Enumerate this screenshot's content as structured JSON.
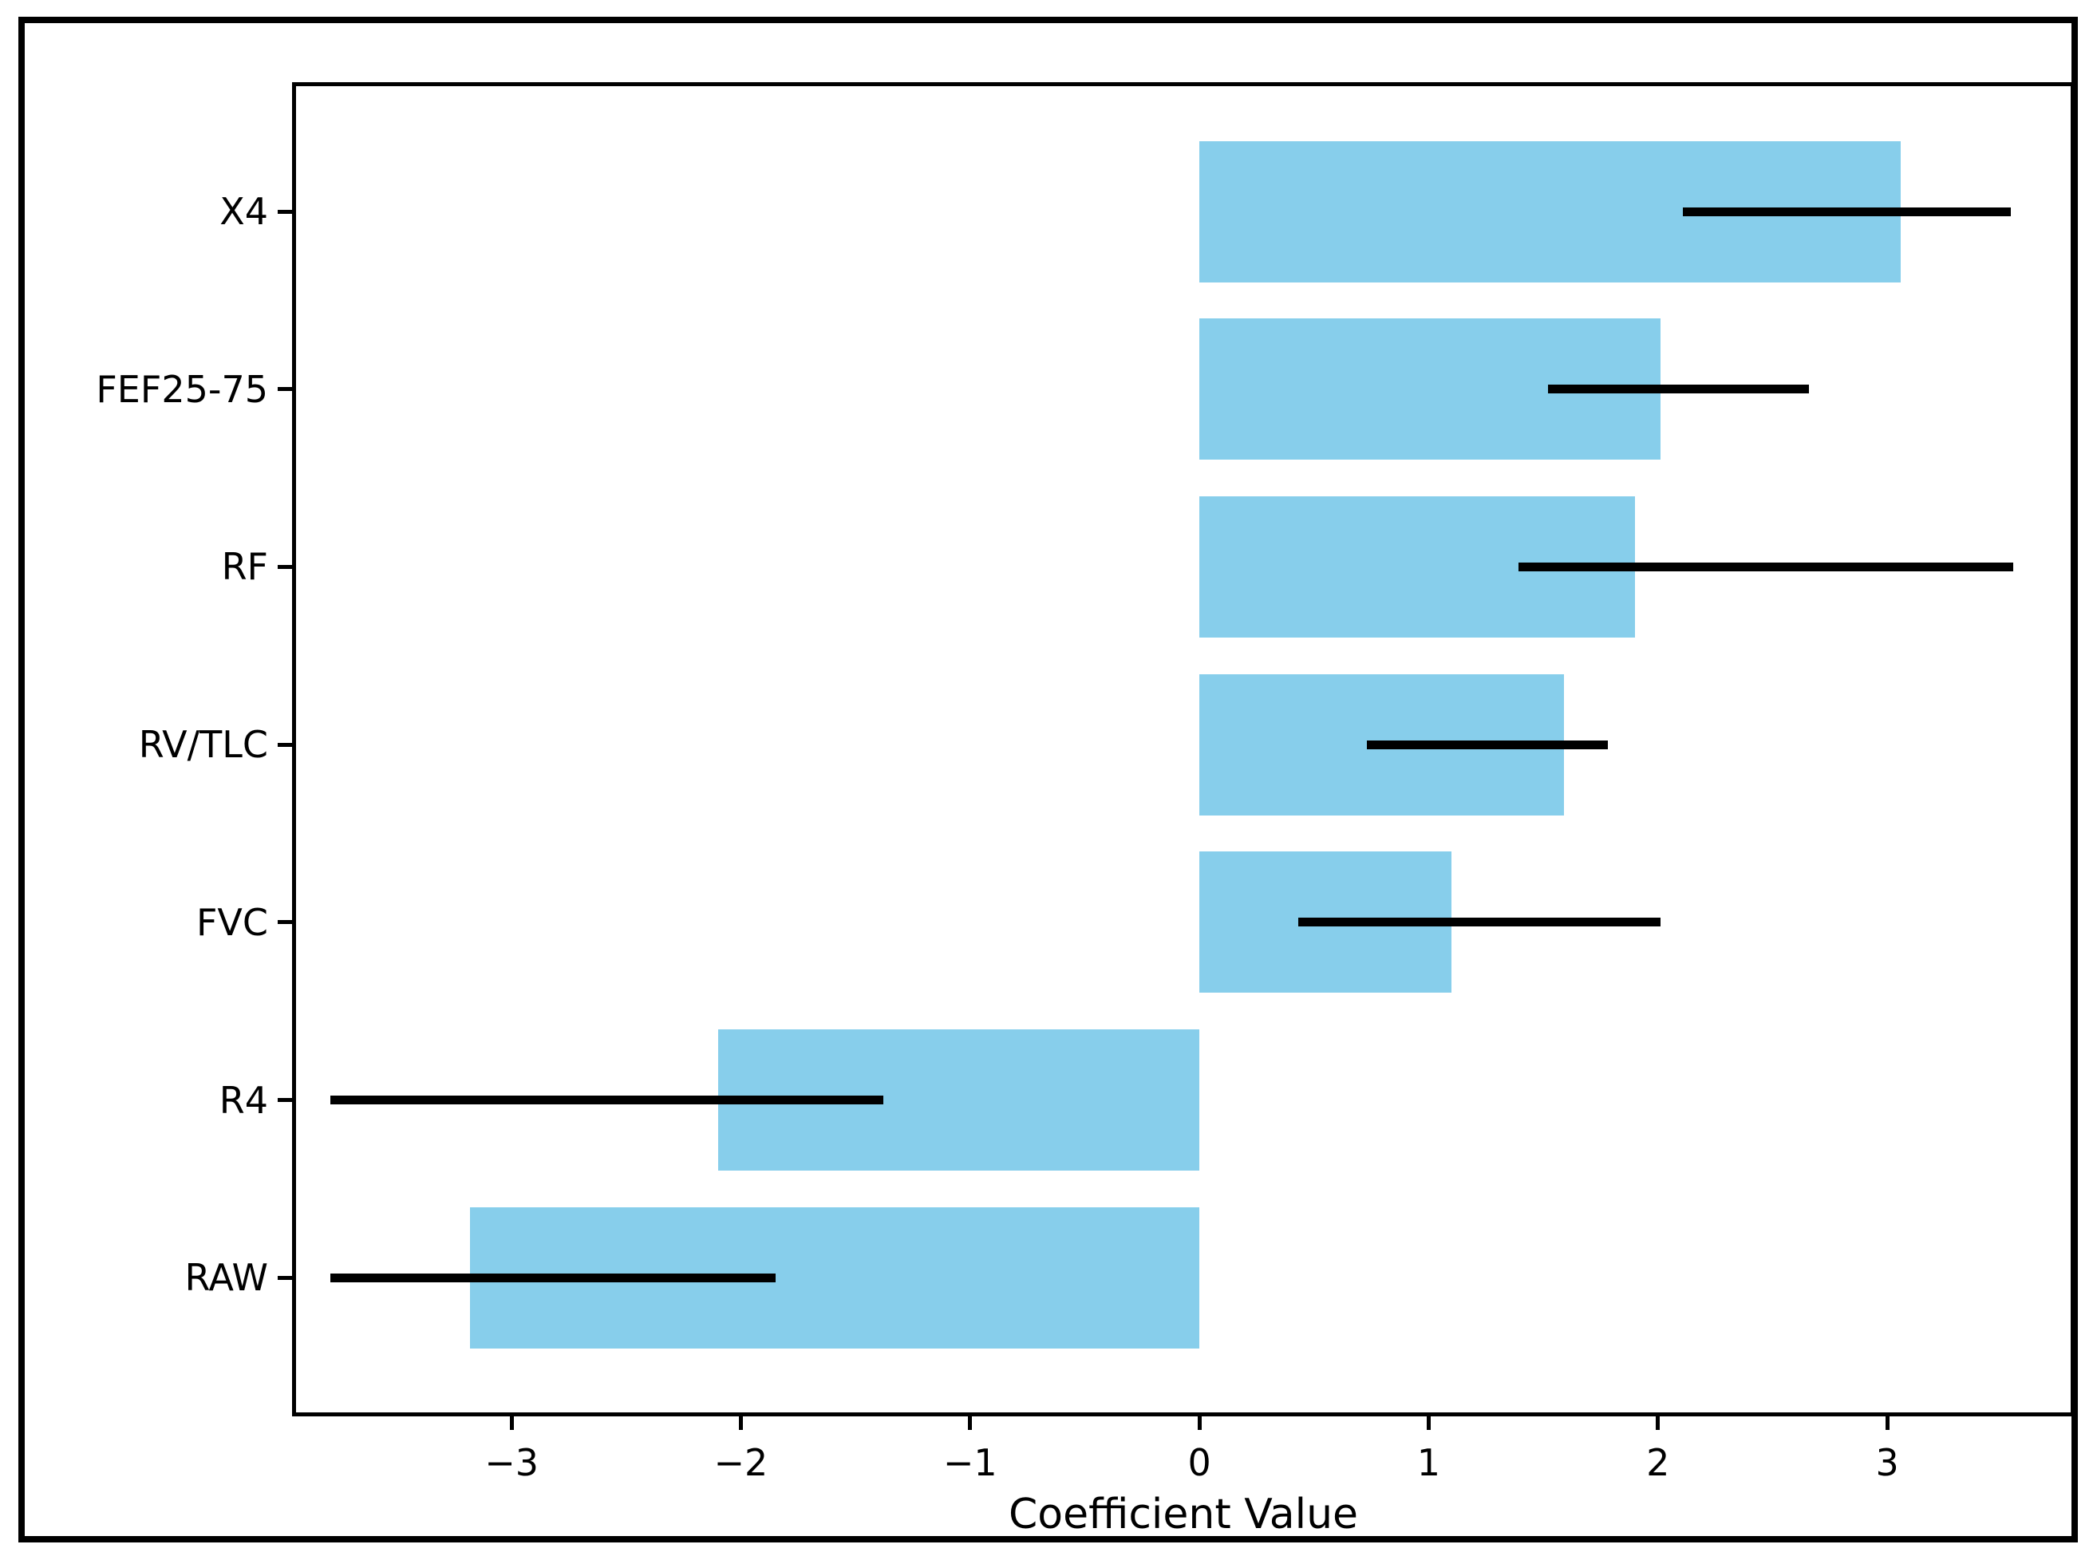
{
  "figure": {
    "background": "#ffffff",
    "border_color": "#000000",
    "bar_color": "#87CEEB",
    "error_bar_color": "#000000"
  },
  "chart_data": {
    "type": "bar",
    "orientation": "horizontal",
    "title": "",
    "xlabel": "Coefficient Value",
    "ylabel": "",
    "categories": [
      "X4",
      "FEF25-75",
      "RF",
      "RV/TLC",
      "FVC",
      "R4",
      "RAW"
    ],
    "values": [
      3.06,
      2.01,
      1.9,
      1.59,
      1.1,
      -2.1,
      -3.18
    ],
    "error_low": [
      2.11,
      1.52,
      1.39,
      0.73,
      0.43,
      -3.79,
      -3.79
    ],
    "error_high": [
      3.54,
      2.66,
      3.55,
      1.78,
      2.01,
      -1.38,
      -1.85
    ],
    "xlim": [
      -3.94,
      3.8
    ],
    "x_ticks": [
      -3,
      -2,
      -1,
      0,
      1,
      2,
      3
    ],
    "x_tick_labels": [
      "−3",
      "−2",
      "−1",
      "0",
      "1",
      "2",
      "3"
    ],
    "grid": false,
    "legend": null
  }
}
